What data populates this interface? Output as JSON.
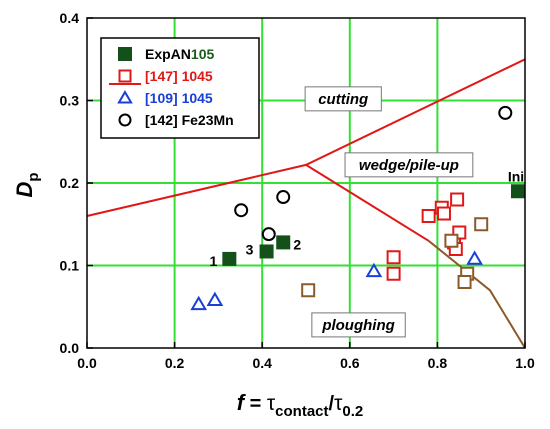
{
  "chart_data": {
    "type": "scatter",
    "xlim": [
      0.0,
      1.0
    ],
    "ylim": [
      0.0,
      0.4
    ],
    "grid": true,
    "xticks": [
      "0.0",
      "0.2",
      "0.4",
      "0.6",
      "0.8",
      "1.0"
    ],
    "yticks": [
      "0.0",
      "0.1",
      "0.2",
      "0.3",
      "0.4"
    ],
    "xlabel": {
      "f": "f",
      "eq": " = ",
      "tau1": "τ",
      "sub1": "contact",
      "slash": "/",
      "tau2": "τ",
      "sub2": "0.2"
    },
    "ylabel": {
      "main": "D",
      "sub": "p"
    },
    "legend_position": "top-left",
    "legend": [
      {
        "ref": "ExpAN",
        "mat": "105",
        "ref_color": "#000000",
        "mat_color": "#1a5c1a",
        "marker": "filled-square",
        "color": "#14501a"
      },
      {
        "ref": "[147]",
        "mat": " 1045",
        "ref_color": "#e01818",
        "mat_color": "#e01818",
        "marker": "open-square",
        "color": "#e01818"
      },
      {
        "ref": "[109]",
        "mat": " 1045",
        "ref_color": "#1a3fd6",
        "mat_color": "#1a3fd6",
        "marker": "open-triangle",
        "color": "#1a3fd6"
      },
      {
        "ref": "[142]",
        "mat": " Fe23Mn",
        "ref_color": "#000000",
        "mat_color": "#000000",
        "marker": "open-circle",
        "color": "#000000"
      }
    ],
    "regions": [
      {
        "label": "cutting",
        "x": 0.585,
        "y": 0.302
      },
      {
        "label": "wedge/pile-up",
        "x": 0.735,
        "y": 0.222
      },
      {
        "label": "ploughing",
        "x": 0.62,
        "y": 0.028
      }
    ],
    "boundaries": [
      {
        "name": "upper",
        "color": "#e01818",
        "points": [
          [
            0.0,
            0.16
          ],
          [
            0.5,
            0.222
          ],
          [
            1.0,
            0.35
          ]
        ]
      },
      {
        "name": "red-lower",
        "color": "#e01818",
        "points": [
          [
            0.5,
            0.222
          ],
          [
            0.78,
            0.13
          ]
        ]
      },
      {
        "name": "brown-lower",
        "color": "#8b5a2b",
        "points": [
          [
            0.78,
            0.13
          ],
          [
            0.92,
            0.07
          ],
          [
            1.0,
            0.0
          ]
        ]
      }
    ],
    "series": [
      {
        "name": "ExpAN105",
        "marker": "filled-square",
        "color": "#14501a",
        "points": [
          {
            "x": 0.325,
            "y": 0.108,
            "label": "1"
          },
          {
            "x": 0.41,
            "y": 0.117,
            "label": "3"
          },
          {
            "x": 0.448,
            "y": 0.128,
            "label": "2"
          },
          {
            "x": 0.984,
            "y": 0.19,
            "label": "Ini"
          }
        ]
      },
      {
        "name": "[147] 1045",
        "marker": "open-square",
        "color": "#e01818",
        "points": [
          {
            "x": 0.7,
            "y": 0.11
          },
          {
            "x": 0.7,
            "y": 0.09
          },
          {
            "x": 0.78,
            "y": 0.16
          },
          {
            "x": 0.81,
            "y": 0.17
          },
          {
            "x": 0.845,
            "y": 0.18
          },
          {
            "x": 0.815,
            "y": 0.163
          },
          {
            "x": 0.838,
            "y": 0.128
          },
          {
            "x": 0.842,
            "y": 0.12
          },
          {
            "x": 0.85,
            "y": 0.14
          }
        ]
      },
      {
        "name": "[147] 1045 (brown)",
        "marker": "open-square",
        "color": "#8b5a2b",
        "points": [
          {
            "x": 0.505,
            "y": 0.07
          },
          {
            "x": 0.832,
            "y": 0.13
          },
          {
            "x": 0.868,
            "y": 0.09
          },
          {
            "x": 0.862,
            "y": 0.08
          },
          {
            "x": 0.9,
            "y": 0.15
          }
        ]
      },
      {
        "name": "[109] 1045",
        "marker": "open-triangle",
        "color": "#1a3fd6",
        "points": [
          {
            "x": 0.255,
            "y": 0.053
          },
          {
            "x": 0.292,
            "y": 0.058
          },
          {
            "x": 0.655,
            "y": 0.093
          },
          {
            "x": 0.885,
            "y": 0.108
          }
        ]
      },
      {
        "name": "[142] Fe23Mn",
        "marker": "open-circle",
        "color": "#000000",
        "points": [
          {
            "x": 0.352,
            "y": 0.167
          },
          {
            "x": 0.448,
            "y": 0.183
          },
          {
            "x": 0.415,
            "y": 0.138
          },
          {
            "x": 0.955,
            "y": 0.285
          }
        ]
      }
    ]
  }
}
